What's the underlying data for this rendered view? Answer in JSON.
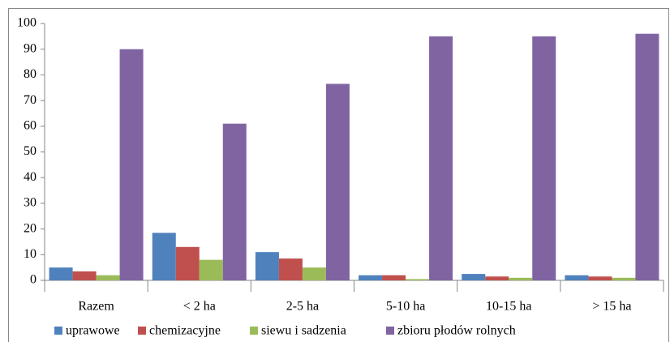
{
  "chart_data": {
    "type": "bar",
    "categories": [
      "Razem",
      "< 2 ha",
      "2-5 ha",
      "5-10 ha",
      "10-15 ha",
      "> 15 ha"
    ],
    "series": [
      {
        "name": "uprawowe",
        "color": "#4f81bd",
        "values": [
          5,
          18.5,
          11,
          2,
          2.5,
          2
        ]
      },
      {
        "name": "chemizacyjne",
        "color": "#c0504d",
        "values": [
          3.5,
          13,
          8.5,
          2,
          1.5,
          1.5
        ]
      },
      {
        "name": "siewu i sadzenia",
        "color": "#9bbb59",
        "values": [
          2,
          8,
          5,
          0.5,
          1,
          1
        ]
      },
      {
        "name": "zbioru płodów rolnych",
        "color": "#8064a2",
        "values": [
          90,
          61,
          76.5,
          95,
          95,
          96
        ]
      }
    ],
    "ylim": [
      0,
      100
    ],
    "yticks": [
      0,
      10,
      20,
      30,
      40,
      50,
      60,
      70,
      80,
      90,
      100
    ],
    "grid": false,
    "legend": "bottom"
  }
}
